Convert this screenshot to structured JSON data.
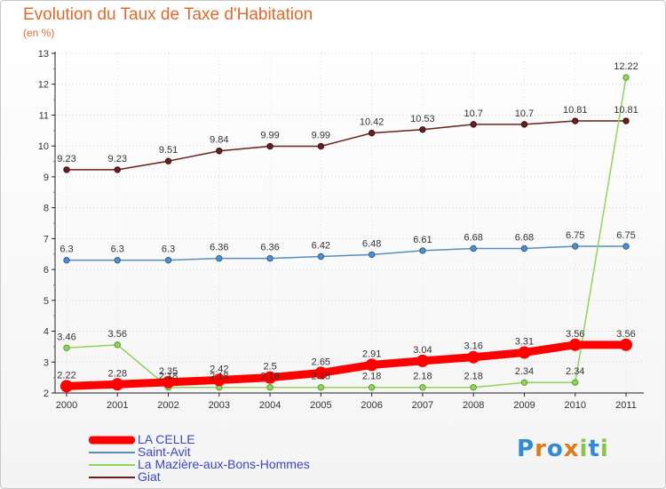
{
  "header": {
    "title": "Evolution du Taux de Taxe d'Habitation",
    "subtitle": "(en %)"
  },
  "logo": {
    "letters": [
      "P",
      "r",
      "o",
      "x",
      "i",
      "t",
      "i"
    ],
    "colors": [
      "#2f8bd6",
      "#e07a1e",
      "#2f8bd6",
      "#e07a1e",
      "#8bc34a",
      "#2f8bd6",
      "#8bc34a"
    ]
  },
  "chart_data": {
    "type": "line",
    "title": "Evolution du Taux de Taxe d'Habitation",
    "subtitle": "(en %)",
    "xlabel": "",
    "ylabel": "",
    "x": [
      "2000",
      "2001",
      "2002",
      "2003",
      "2004",
      "2005",
      "2006",
      "2007",
      "2008",
      "2009",
      "2010",
      "2011"
    ],
    "ylim": [
      2,
      13
    ],
    "yticks": [
      2,
      3,
      4,
      5,
      6,
      7,
      8,
      9,
      10,
      11,
      12,
      13
    ],
    "grid": "horizontal-dotted",
    "legend_position": "bottom-left",
    "series": [
      {
        "name": "LA CELLE",
        "color": "#ff0000",
        "values": [
          2.22,
          2.28,
          2.35,
          2.42,
          2.5,
          2.65,
          2.91,
          3.04,
          3.16,
          3.31,
          3.56,
          3.56
        ],
        "labels": [
          "2.22",
          "2.28",
          "2.35",
          "2.42",
          "2.5",
          "2.65",
          "2.91",
          "3.04",
          "3.16",
          "3.31",
          "3.56",
          "3.56"
        ]
      },
      {
        "name": "Saint-Avit",
        "color": "#5b8db8",
        "values": [
          6.3,
          6.3,
          6.3,
          6.36,
          6.36,
          6.42,
          6.48,
          6.61,
          6.68,
          6.68,
          6.75,
          6.75
        ],
        "labels": [
          "6.3",
          "6.3",
          "6.3",
          "6.36",
          "6.36",
          "6.42",
          "6.48",
          "6.61",
          "6.68",
          "6.68",
          "6.75",
          "6.75"
        ]
      },
      {
        "name": "La Mazière-aux-Bons-Hommes",
        "color": "#8fd45a",
        "values": [
          3.46,
          3.56,
          2.18,
          2.18,
          2.18,
          2.18,
          2.18,
          2.18,
          2.18,
          2.34,
          2.34,
          12.22
        ],
        "labels": [
          "3.46",
          "3.56",
          "2.18",
          "2.18",
          "2.18",
          "2.18",
          "2.18",
          "2.18",
          "2.18",
          "2.34",
          "2.34",
          "12.22"
        ]
      },
      {
        "name": "Giat",
        "color": "#6b1f1f",
        "values": [
          9.23,
          9.23,
          9.51,
          9.84,
          9.99,
          9.99,
          10.42,
          10.53,
          10.7,
          10.7,
          10.81,
          10.81
        ],
        "labels": [
          "9.23",
          "9.23",
          "9.51",
          "9.84",
          "9.99",
          "9.99",
          "10.42",
          "10.53",
          "10.7",
          "10.7",
          "10.81",
          "10.81"
        ]
      }
    ]
  }
}
